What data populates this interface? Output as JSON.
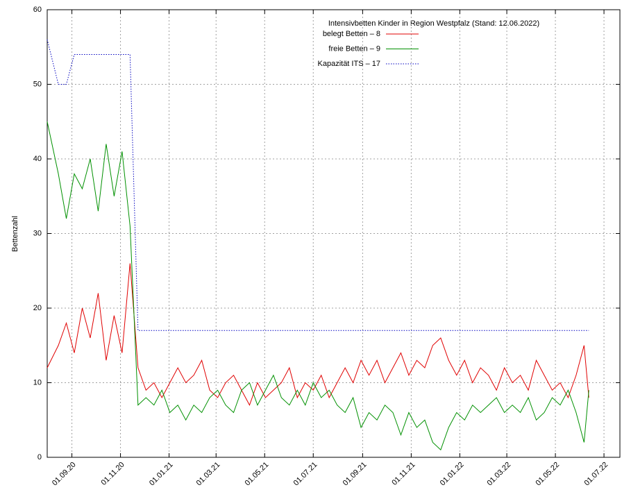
{
  "chart_data": {
    "type": "line",
    "legend_title": "Intensivbetten Kinder in Region Westpfalz (Stand: 12.06.2022)",
    "ylabel": "Bettenzahl",
    "x": [
      "01.08.20",
      "15.08.20",
      "25.08.20",
      "04.09.20",
      "14.09.20",
      "24.09.20",
      "04.10.20",
      "14.10.20",
      "24.10.20",
      "03.11.20",
      "13.11.20",
      "23.11.20",
      "03.12.20",
      "13.12.20",
      "23.12.20",
      "02.01.21",
      "12.01.21",
      "22.01.21",
      "01.02.21",
      "11.02.21",
      "21.02.21",
      "03.03.21",
      "13.03.21",
      "23.03.21",
      "02.04.21",
      "12.04.21",
      "22.04.21",
      "02.05.21",
      "12.05.21",
      "22.05.21",
      "01.06.21",
      "11.06.21",
      "21.06.21",
      "01.07.21",
      "11.07.21",
      "21.07.21",
      "31.07.21",
      "10.08.21",
      "20.08.21",
      "30.08.21",
      "09.09.21",
      "19.09.21",
      "29.09.21",
      "09.10.21",
      "19.10.21",
      "29.10.21",
      "08.11.21",
      "18.11.21",
      "28.11.21",
      "08.12.21",
      "18.12.21",
      "28.12.21",
      "07.01.22",
      "17.01.22",
      "27.01.22",
      "06.02.22",
      "16.02.22",
      "26.02.22",
      "08.03.22",
      "18.03.22",
      "28.03.22",
      "07.04.22",
      "17.04.22",
      "27.04.22",
      "07.05.22",
      "17.05.22",
      "27.05.22",
      "06.06.22",
      "12.06.22"
    ],
    "series": [
      {
        "name": "belegt Betten – 8",
        "color": "#e00000",
        "style": "solid",
        "values": [
          12,
          15,
          18,
          14,
          20,
          16,
          22,
          13,
          19,
          14,
          26,
          12,
          9,
          10,
          8,
          10,
          12,
          10,
          11,
          13,
          9,
          8,
          10,
          11,
          9,
          7,
          10,
          8,
          9,
          10,
          12,
          8,
          10,
          9,
          11,
          8,
          10,
          12,
          10,
          13,
          11,
          13,
          10,
          12,
          14,
          11,
          13,
          12,
          15,
          16,
          13,
          11,
          13,
          10,
          12,
          11,
          9,
          12,
          10,
          11,
          9,
          13,
          11,
          9,
          10,
          8,
          11,
          15,
          8
        ]
      },
      {
        "name": "freie Betten – 9",
        "color": "#009000",
        "style": "solid",
        "values": [
          45,
          38,
          32,
          38,
          36,
          40,
          33,
          42,
          35,
          41,
          31,
          7,
          8,
          7,
          9,
          6,
          7,
          5,
          7,
          6,
          8,
          9,
          7,
          6,
          9,
          10,
          7,
          9,
          11,
          8,
          7,
          9,
          7,
          10,
          8,
          9,
          7,
          6,
          8,
          4,
          6,
          5,
          7,
          6,
          3,
          6,
          4,
          5,
          2,
          1,
          4,
          6,
          5,
          7,
          6,
          7,
          8,
          6,
          7,
          6,
          8,
          5,
          6,
          8,
          7,
          9,
          6,
          2,
          9
        ]
      },
      {
        "name": "Kapazität ITS – 17",
        "color": "#0000c0",
        "style": "dotted",
        "values": [
          56,
          50,
          50,
          54,
          54,
          54,
          54,
          54,
          54,
          54,
          54,
          17,
          17,
          17,
          17,
          17,
          17,
          17,
          17,
          17,
          17,
          17,
          17,
          17,
          17,
          17,
          17,
          17,
          17,
          17,
          17,
          17,
          17,
          17,
          17,
          17,
          17,
          17,
          17,
          17,
          17,
          17,
          17,
          17,
          17,
          17,
          17,
          17,
          17,
          17,
          17,
          17,
          17,
          17,
          17,
          17,
          17,
          17,
          17,
          17,
          17,
          17,
          17,
          17,
          17,
          17,
          17,
          17,
          17
        ]
      }
    ],
    "xlim": [
      "01.08.20",
      "21.07.22"
    ],
    "xticks": [
      "01.09.20",
      "01.11.20",
      "01.01.21",
      "01.03.21",
      "01.05.21",
      "01.07.21",
      "01.09.21",
      "01.11.21",
      "01.01.22",
      "01.03.22",
      "01.05.22",
      "01.07.22"
    ],
    "ylim": [
      0,
      60
    ],
    "yticks": [
      0,
      10,
      20,
      30,
      40,
      50,
      60
    ],
    "grid": true
  }
}
